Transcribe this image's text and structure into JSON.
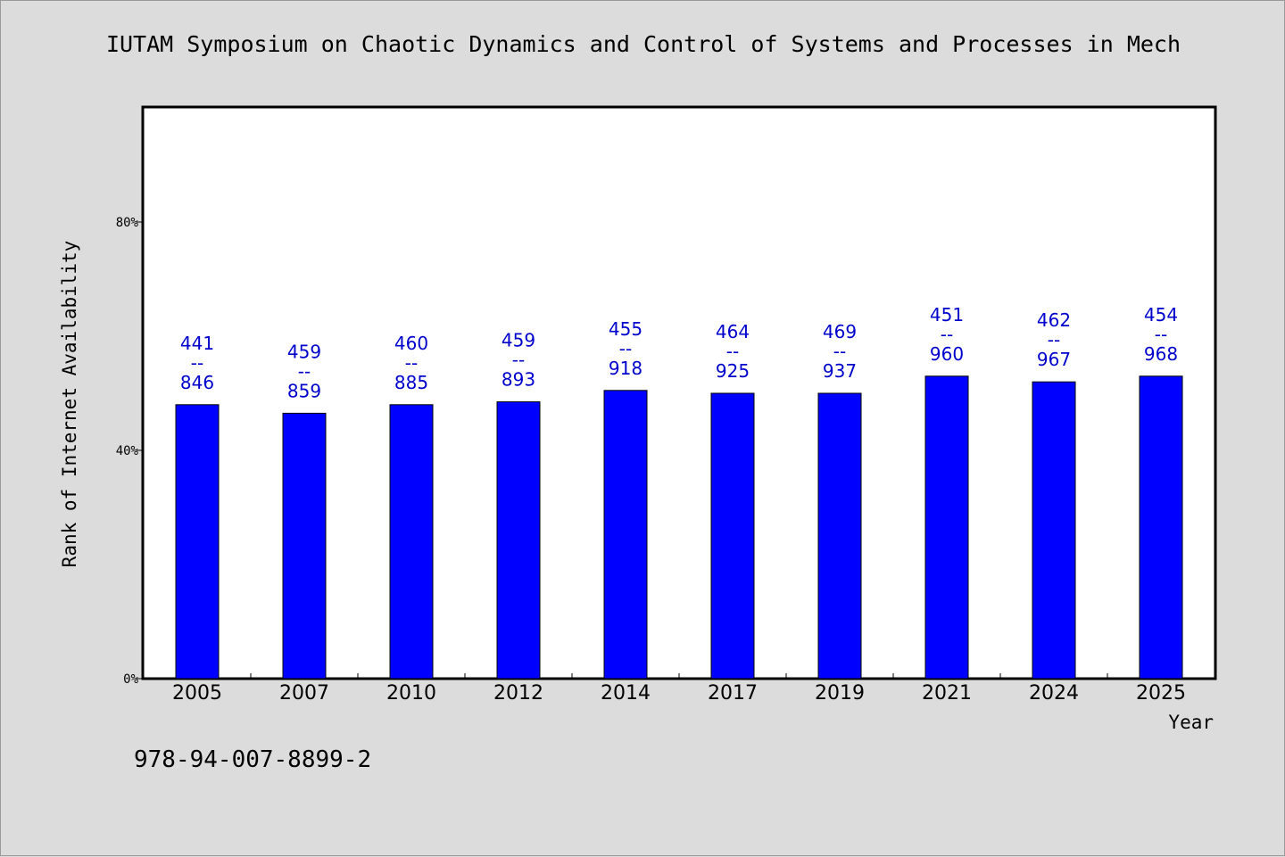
{
  "chart_data": {
    "type": "bar",
    "title": "IUTAM Symposium on Chaotic Dynamics and Control of Systems and Processes in Mech",
    "xlabel": "Year",
    "ylabel": "Rank of Internet Availability",
    "categories": [
      "2005",
      "2007",
      "2010",
      "2012",
      "2014",
      "2017",
      "2019",
      "2021",
      "2024",
      "2025"
    ],
    "values": [
      48,
      46.5,
      48,
      48.5,
      50.5,
      50,
      50,
      53,
      52,
      53
    ],
    "data_labels": [
      {
        "top": "441",
        "sep": "--",
        "bottom": "846"
      },
      {
        "top": "459",
        "sep": "--",
        "bottom": "859"
      },
      {
        "top": "460",
        "sep": "--",
        "bottom": "885"
      },
      {
        "top": "459",
        "sep": "--",
        "bottom": "893"
      },
      {
        "top": "455",
        "sep": "--",
        "bottom": "918"
      },
      {
        "top": "464",
        "sep": "--",
        "bottom": "925"
      },
      {
        "top": "469",
        "sep": "--",
        "bottom": "937"
      },
      {
        "top": "451",
        "sep": "--",
        "bottom": "960"
      },
      {
        "top": "462",
        "sep": "--",
        "bottom": "967"
      },
      {
        "top": "454",
        "sep": "--",
        "bottom": "968"
      }
    ],
    "yticks": [
      0,
      40,
      80
    ],
    "ytick_labels": [
      "0%",
      "40%",
      "80%"
    ],
    "ylim": [
      0,
      100
    ],
    "grid": false,
    "legend": "none",
    "bar_color": "#0000ff",
    "label_color": "#0000cc"
  },
  "footer": {
    "isbn": "978-94-007-8899-2"
  }
}
